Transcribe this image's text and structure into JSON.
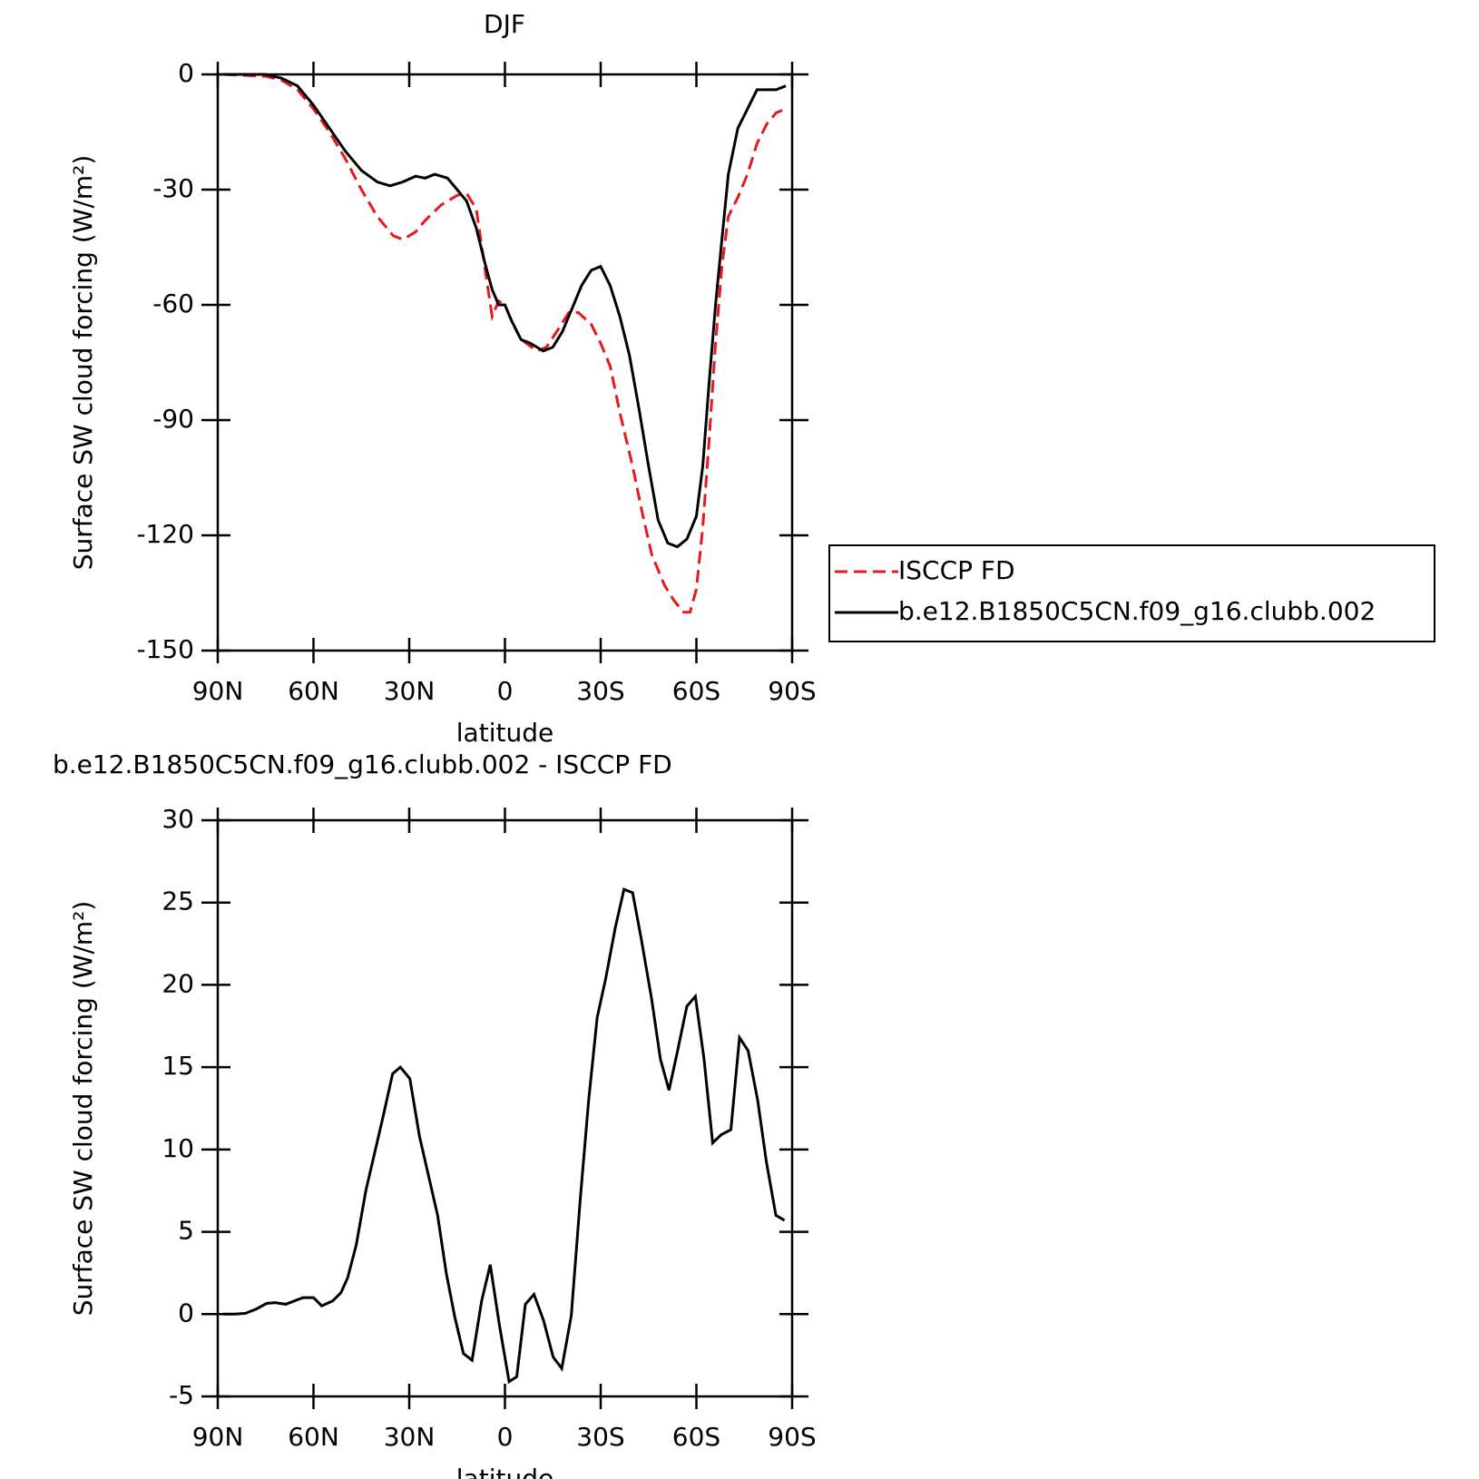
{
  "chart_data": [
    {
      "type": "line",
      "title": "DJF",
      "x_label": "latitude",
      "y_label": "Surface SW cloud forcing (W/m²)",
      "xlim": [
        90,
        -90
      ],
      "xticks": [
        {
          "value": 90,
          "label": "90N"
        },
        {
          "value": 60,
          "label": "60N"
        },
        {
          "value": 30,
          "label": "30N"
        },
        0,
        {
          "value": -30,
          "label": "30S"
        },
        {
          "value": -60,
          "label": "60S"
        },
        {
          "value": -90,
          "label": "90S"
        }
      ],
      "ylim": [
        -150,
        0
      ],
      "yticks": [
        -150,
        -120,
        -90,
        -60,
        -30,
        0
      ],
      "legend": "right",
      "series": [
        {
          "name": "ISCCP FD",
          "color": "#e41a1c",
          "style": "dashed",
          "x": [
            88,
            75,
            70,
            65,
            60,
            55,
            50,
            45,
            40,
            35,
            32,
            28,
            25,
            20,
            15,
            12,
            9,
            6,
            4,
            2,
            0,
            -2,
            -5,
            -10,
            -13,
            -17,
            -20,
            -23,
            -27,
            -30,
            -33,
            -36,
            -40,
            -43,
            -46,
            -50,
            -53,
            -56,
            -58,
            -60,
            -62,
            -64,
            -66,
            -68,
            -70,
            -73,
            -76,
            -79,
            -82,
            -85,
            -88
          ],
          "values": [
            0,
            -0.5,
            -1.5,
            -4,
            -9,
            -15,
            -22,
            -30,
            -37,
            -42,
            -43,
            -41,
            -38,
            -34,
            -31.5,
            -31,
            -35,
            -52,
            -63,
            -59,
            -60,
            -64,
            -69,
            -72,
            -71,
            -66,
            -62,
            -62,
            -65,
            -70,
            -76,
            -88,
            -102,
            -114,
            -125,
            -133,
            -137,
            -140,
            -140,
            -134,
            -118,
            -95,
            -70,
            -50,
            -37,
            -32,
            -26,
            -18,
            -13,
            -10,
            -9
          ]
        },
        {
          "name": "b.e12.B1850C5CN.f09_g16.clubb.002",
          "color": "#000000",
          "style": "solid",
          "x": [
            88,
            75,
            70,
            65,
            60,
            55,
            50,
            45,
            40,
            36,
            32,
            28,
            25,
            22,
            18,
            15,
            12,
            9,
            6,
            4,
            2,
            0,
            -2,
            -5,
            -8,
            -12,
            -15,
            -18,
            -21,
            -24,
            -27,
            -30,
            -33,
            -36,
            -39,
            -42,
            -45,
            -48,
            -51,
            -54,
            -57,
            -60,
            -62,
            -64,
            -66,
            -68,
            -70,
            -73,
            -76,
            -79,
            -82,
            -85,
            -88
          ],
          "values": [
            0,
            0,
            -1,
            -3,
            -8,
            -14,
            -20,
            -25,
            -28,
            -29,
            -28,
            -26.5,
            -27,
            -26,
            -27,
            -30,
            -33,
            -40,
            -50,
            -56,
            -60,
            -60,
            -64,
            -69,
            -70,
            -72,
            -71,
            -67,
            -61,
            -55,
            -51,
            -50,
            -55,
            -63,
            -73,
            -87,
            -102,
            -116,
            -122,
            -123,
            -121,
            -115,
            -102,
            -80,
            -60,
            -43,
            -26,
            -14,
            -9,
            -4,
            -4,
            -4,
            -3
          ]
        }
      ]
    },
    {
      "type": "line",
      "title": "b.e12.B1850C5CN.f09_g16.clubb.002 - ISCCP FD",
      "x_label": "latitude",
      "y_label": "Surface SW cloud forcing (W/m²)",
      "xlim": [
        90,
        -90
      ],
      "xticks": [
        {
          "value": 90,
          "label": "90N"
        },
        {
          "value": 60,
          "label": "60N"
        },
        {
          "value": 30,
          "label": "30N"
        },
        0,
        {
          "value": -30,
          "label": "30S"
        },
        {
          "value": -60,
          "label": "60S"
        },
        {
          "value": -90,
          "label": "90S"
        }
      ],
      "ylim": [
        -5,
        30
      ],
      "yticks": [
        -5,
        0,
        5,
        10,
        15,
        20,
        25,
        30
      ],
      "series": [
        {
          "color": "#000000",
          "style": "solid",
          "x": [
            88.2,
            84.6,
            81.3,
            78,
            74.7,
            72,
            68.7,
            63.3,
            60,
            57.4,
            54,
            51.4,
            49.3,
            46.6,
            43.6,
            38.2,
            35.2,
            32.8,
            29.8,
            26.8,
            21.1,
            18.4,
            15.7,
            13,
            10.3,
            7.3,
            4.6,
            1.7,
            -1.3,
            -3.7,
            -6.4,
            -9.1,
            -12.1,
            -15.1,
            -17.8,
            -20.8,
            -23.5,
            -26.2,
            -28.9,
            -31.6,
            -34.6,
            -37.3,
            -40,
            -42.7,
            -46,
            -48.7,
            -51.4,
            -54,
            -57,
            -59.7,
            -62.4,
            -65.1,
            -67.8,
            -70.8,
            -73.5,
            -76.2,
            -79.2,
            -81.9,
            -84.9,
            -87.6
          ],
          "values": [
            0,
            0,
            0.05,
            0.3,
            0.65,
            0.7,
            0.6,
            1,
            1,
            0.5,
            0.8,
            1.3,
            2.2,
            4.2,
            7.5,
            12,
            14.6,
            15,
            14.3,
            10.8,
            6,
            2.5,
            -0.2,
            -2.4,
            -2.8,
            0.8,
            3,
            -0.7,
            -4.1,
            -3.8,
            0.6,
            1.2,
            -0.4,
            -2.6,
            -3.3,
            -0.1,
            6.7,
            12.9,
            18,
            20.4,
            23.5,
            25.8,
            25.6,
            22.8,
            19.1,
            15.5,
            13.6,
            15.9,
            18.7,
            19.3,
            15.5,
            10.4,
            10.9,
            11.2,
            16.8,
            16,
            13,
            9.3,
            6,
            5.7
          ]
        }
      ]
    }
  ]
}
